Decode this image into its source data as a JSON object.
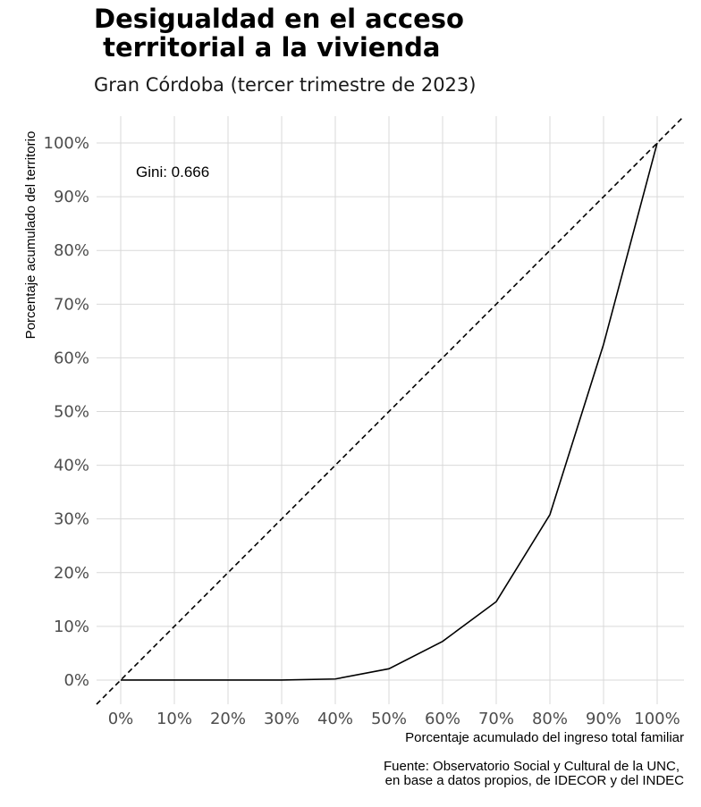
{
  "chart_data": {
    "type": "line",
    "title_line1": "Desigualdad en el acceso",
    "title_line2": " territorial a la vivienda",
    "subtitle": "Gran Córdoba (tercer trimestre de 2023)",
    "xlabel": "Porcentaje acumulado del ingreso total familiar",
    "ylabel": "Porcentaje acumulado del territorio",
    "caption_line1": "Fuente: Observatorio Social y Cultural de la UNC,",
    "caption_line2": "en base a datos propios, de IDECOR y del INDEC",
    "annotation": "Gini: 0.666",
    "xlim": [
      -0.045,
      1.05
    ],
    "ylim": [
      -0.045,
      1.05
    ],
    "x_ticks": [
      0,
      0.1,
      0.2,
      0.3,
      0.4,
      0.5,
      0.6,
      0.7,
      0.8,
      0.9,
      1.0
    ],
    "x_tick_labels": [
      "0%",
      "10%",
      "20%",
      "30%",
      "40%",
      "50%",
      "60%",
      "70%",
      "80%",
      "90%",
      "100%"
    ],
    "y_ticks": [
      0,
      0.1,
      0.2,
      0.3,
      0.4,
      0.5,
      0.6,
      0.7,
      0.8,
      0.9,
      1.0
    ],
    "y_tick_labels": [
      "0%",
      "10%",
      "20%",
      "30%",
      "40%",
      "50%",
      "60%",
      "70%",
      "80%",
      "90%",
      "100%"
    ],
    "grid": true,
    "series": [
      {
        "style": "solid",
        "x": [
          0,
          0.1,
          0.2,
          0.3,
          0.4,
          0.5,
          0.6,
          0.7,
          0.8,
          0.9,
          1.0
        ],
        "y": [
          0,
          0,
          0,
          0,
          0.002,
          0.021,
          0.072,
          0.146,
          0.308,
          0.625,
          1.0
        ]
      },
      {
        "style": "dashed",
        "x": [
          -0.045,
          1.05
        ],
        "y": [
          -0.045,
          1.05
        ]
      }
    ],
    "colors": {
      "lines": "#000000",
      "grid": "#d9d9d9",
      "tick_labels": "#4d4d4d"
    }
  }
}
